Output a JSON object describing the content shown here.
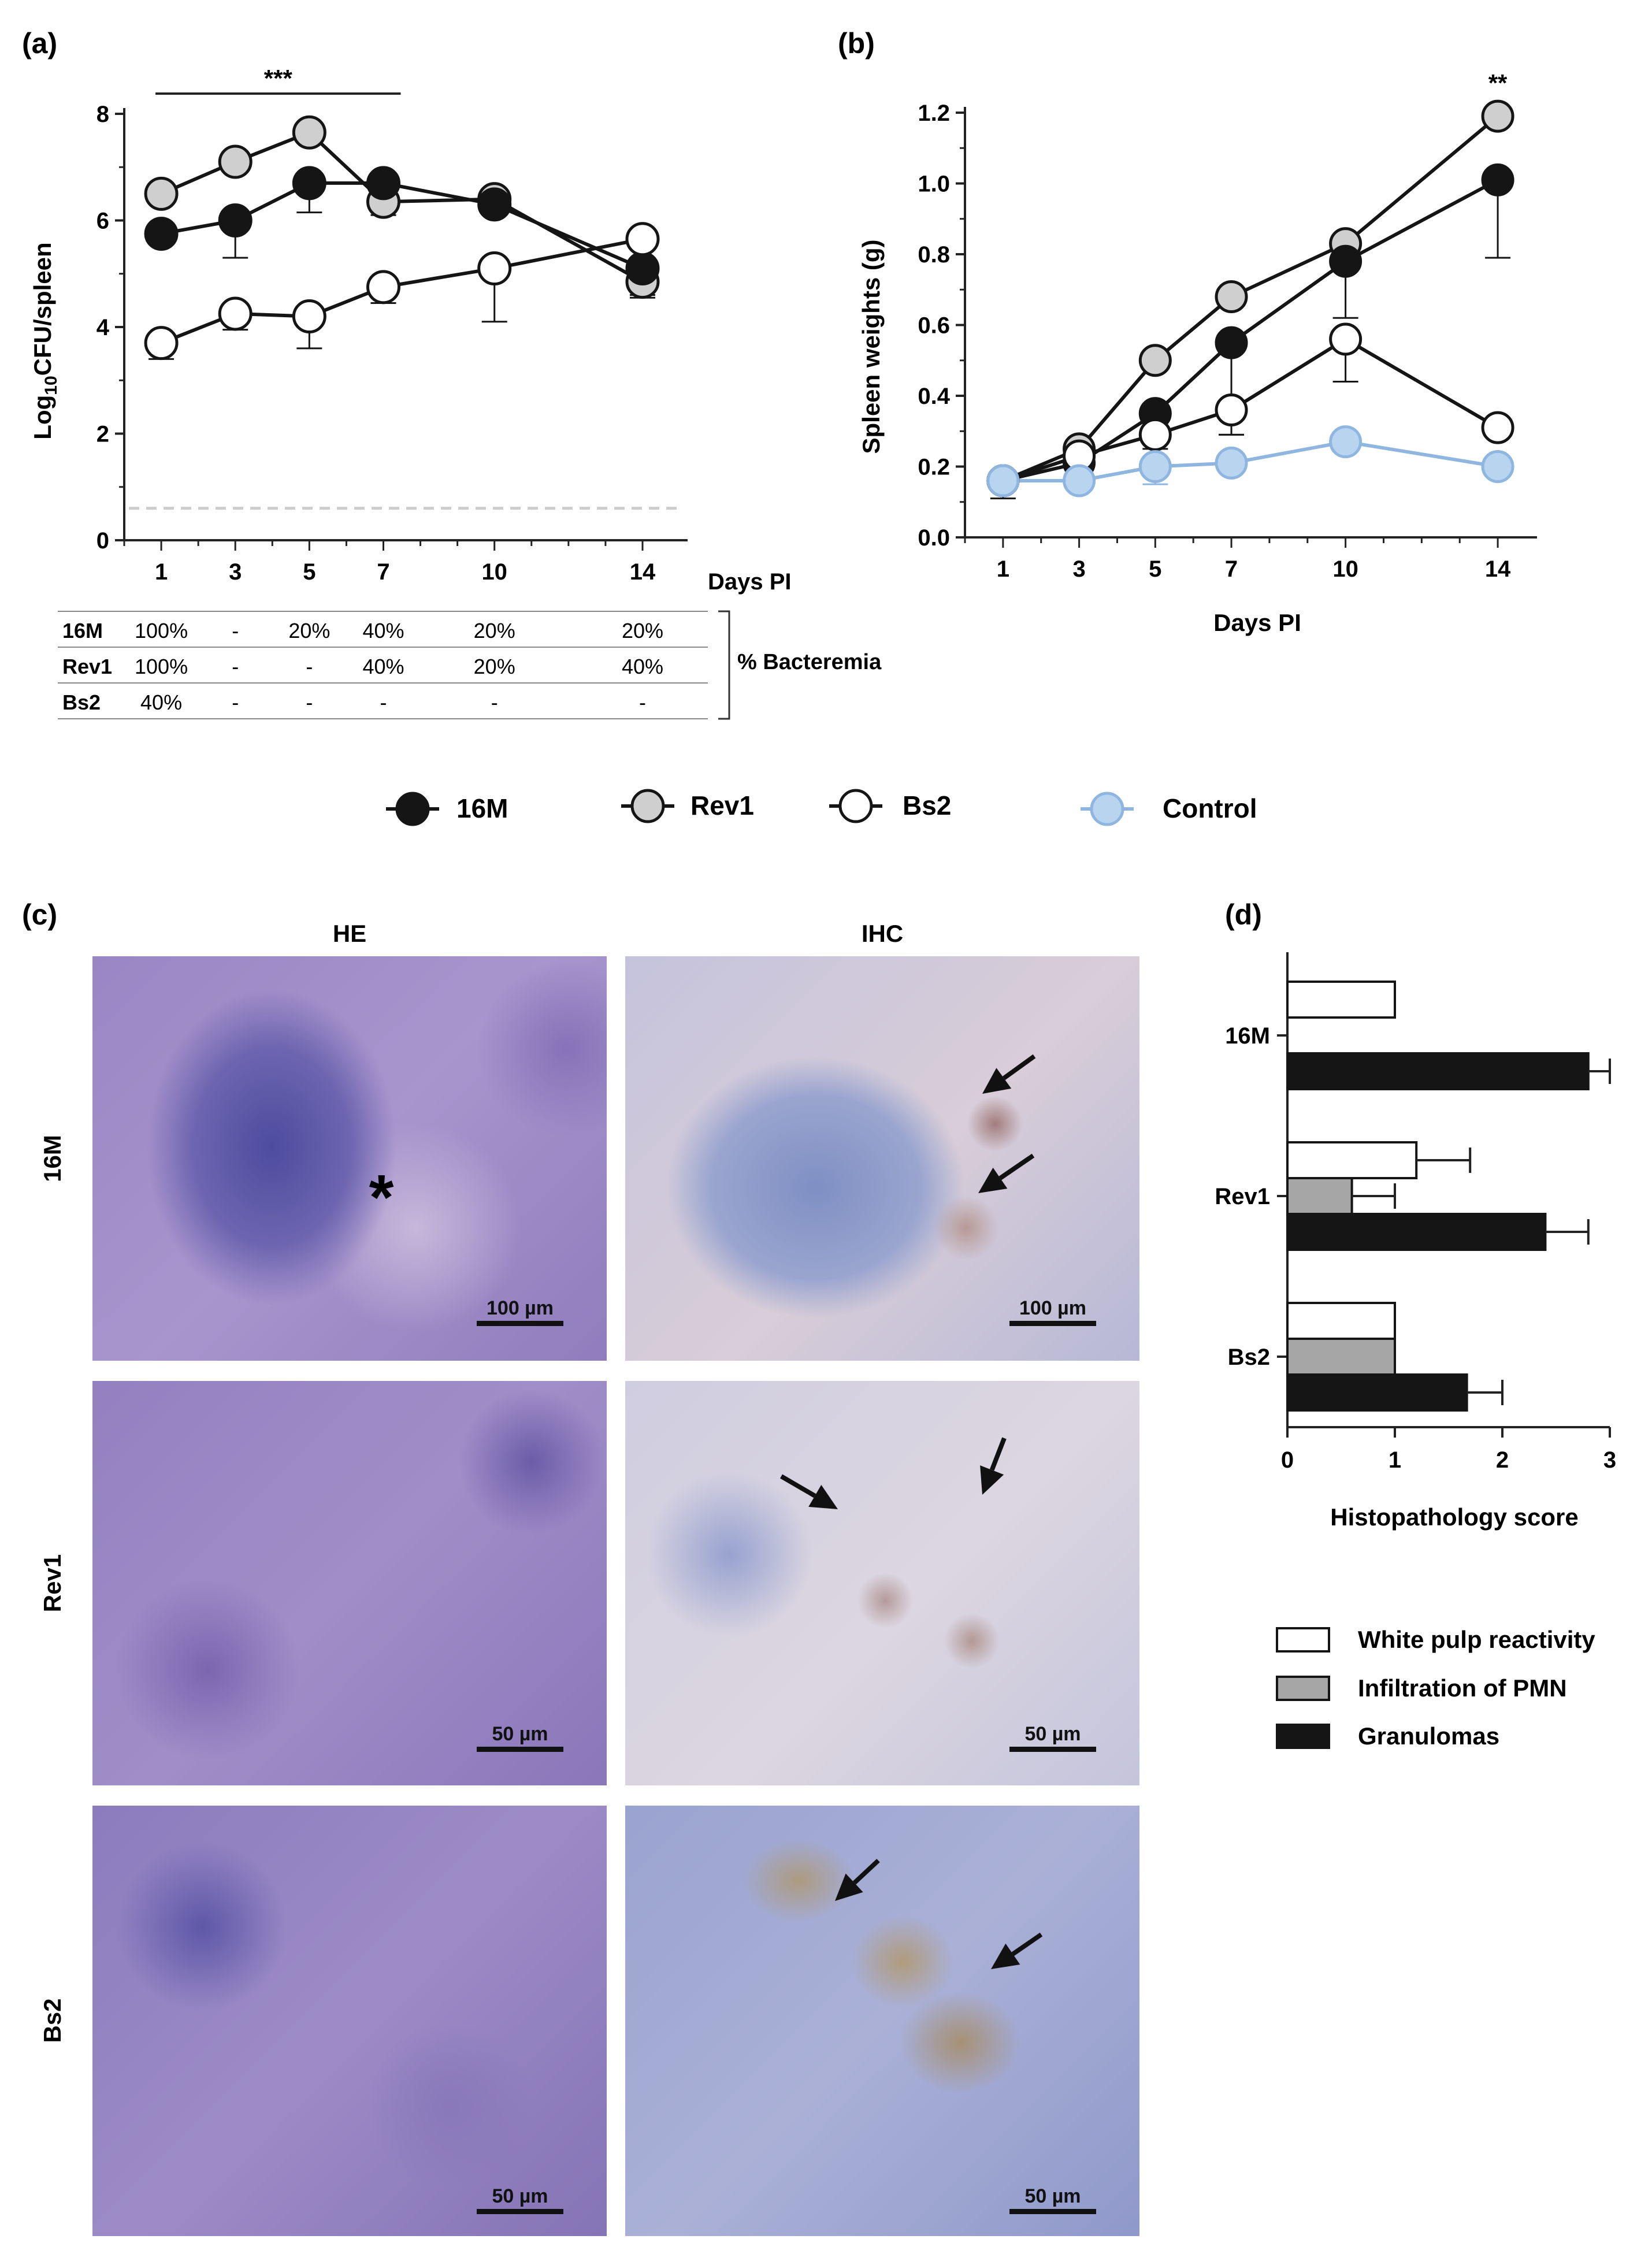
{
  "panel_labels": {
    "a": "(a)",
    "b": "(b)",
    "c": "(c)",
    "d": "(d)"
  },
  "colors": {
    "strain_16M": "#151515",
    "strain_Rev1": "#cfcfcf",
    "strain_Bs2": "#ffffff",
    "control": "#b9d4ee",
    "control_line": "#8fb6e0",
    "hist_white": "#ffffff",
    "hist_grey": "#a6a6a6",
    "hist_black": "#151515",
    "detection_limit": "#cccccc"
  },
  "chart_data": [
    {
      "id": "a",
      "type": "line",
      "ylabel_prefix": "Log",
      "ylabel_sub": "10",
      "ylabel_suffix": "CFU/spleen",
      "xlabel": "Days PI",
      "x": [
        1,
        3,
        5,
        7,
        10,
        14
      ],
      "xticks": [
        "1",
        "3",
        "5",
        "7",
        "10",
        "14"
      ],
      "yticks": [
        "0",
        "2",
        "4",
        "6",
        "8"
      ],
      "ylim": [
        0,
        8
      ],
      "detection_limit": 0.6,
      "significance": "***",
      "significance_span": [
        1,
        7
      ],
      "series": [
        {
          "name": "Rev1",
          "values": [
            6.5,
            7.1,
            7.65,
            6.35,
            6.4,
            4.85
          ],
          "error": [
            0,
            0,
            0,
            0.25,
            0,
            0.3
          ]
        },
        {
          "name": "16M",
          "values": [
            5.75,
            6.0,
            6.7,
            6.7,
            6.3,
            5.1
          ],
          "error": [
            0,
            0.7,
            0.55,
            0.4,
            0,
            0.5
          ]
        },
        {
          "name": "Bs2",
          "values": [
            3.7,
            4.25,
            4.2,
            4.75,
            5.1,
            5.65
          ],
          "error": [
            0.3,
            0.3,
            0.6,
            0.3,
            1.0,
            0
          ]
        }
      ]
    },
    {
      "id": "b",
      "type": "line",
      "ylabel": "Spleen weights (g)",
      "xlabel": "Days PI",
      "x": [
        1,
        3,
        5,
        7,
        10,
        14
      ],
      "xticks": [
        "1",
        "3",
        "5",
        "7",
        "10",
        "14"
      ],
      "yticks": [
        "0.0",
        "0.2",
        "0.4",
        "0.6",
        "0.8",
        "1.0",
        "1.2"
      ],
      "ylim": [
        0,
        1.2
      ],
      "significance": "**",
      "significance_x": 14,
      "series": [
        {
          "name": "Rev1",
          "values": [
            0.16,
            0.25,
            0.5,
            0.68,
            0.83,
            1.19
          ],
          "error": [
            0,
            0,
            0,
            0,
            0,
            0
          ]
        },
        {
          "name": "16M",
          "values": [
            0.16,
            0.21,
            0.35,
            0.55,
            0.78,
            1.01
          ],
          "error": [
            0,
            0,
            0,
            0.26,
            0.16,
            0.22
          ]
        },
        {
          "name": "Bs2",
          "values": [
            0.16,
            0.23,
            0.29,
            0.36,
            0.56,
            0.31
          ],
          "error": [
            0.05,
            0,
            0.04,
            0.07,
            0.12,
            0
          ]
        },
        {
          "name": "Control",
          "values": [
            0.16,
            0.16,
            0.2,
            0.21,
            0.27,
            0.2
          ],
          "error": [
            0,
            0,
            0.05,
            0,
            0,
            0
          ]
        }
      ]
    },
    {
      "id": "d",
      "type": "bar",
      "orientation": "horizontal",
      "xlabel": "Histopathology score",
      "xticks": [
        "0",
        "1",
        "2",
        "3"
      ],
      "xlim": [
        0,
        3
      ],
      "categories": [
        "16M",
        "Rev1",
        "Bs2"
      ],
      "series": [
        {
          "name": "White pulp reactivity",
          "values": [
            1.0,
            1.2,
            1.0
          ],
          "error": [
            0,
            0.5,
            0
          ]
        },
        {
          "name": "Infiltration of PMN",
          "values": [
            0,
            0.6,
            1.0
          ],
          "error": [
            0,
            0.4,
            0
          ]
        },
        {
          "name": "Granulomas",
          "values": [
            2.8,
            2.4,
            1.67
          ],
          "error": [
            0.2,
            0.4,
            0.33
          ]
        }
      ]
    }
  ],
  "bacteremia": {
    "label": "% Bacteremia",
    "rows": [
      {
        "name": "16M",
        "values": [
          "100%",
          "-",
          "20%",
          "40%",
          "20%",
          "20%"
        ]
      },
      {
        "name": "Rev1",
        "values": [
          "100%",
          "-",
          "-",
          "40%",
          "20%",
          "40%"
        ]
      },
      {
        "name": "Bs2",
        "values": [
          "40%",
          "-",
          "-",
          "-",
          "-",
          "-"
        ]
      }
    ]
  },
  "legend": [
    "16M",
    "Rev1",
    "Bs2",
    "Control"
  ],
  "micrographs": {
    "columns": [
      "HE",
      "IHC"
    ],
    "rows": [
      "16M",
      "Rev1",
      "Bs2"
    ],
    "scale_bars": [
      [
        "100 µm",
        "100 µm"
      ],
      [
        "50 µm",
        "50 µm"
      ],
      [
        "50 µm",
        "50 µm"
      ]
    ],
    "asterisk": "*"
  }
}
